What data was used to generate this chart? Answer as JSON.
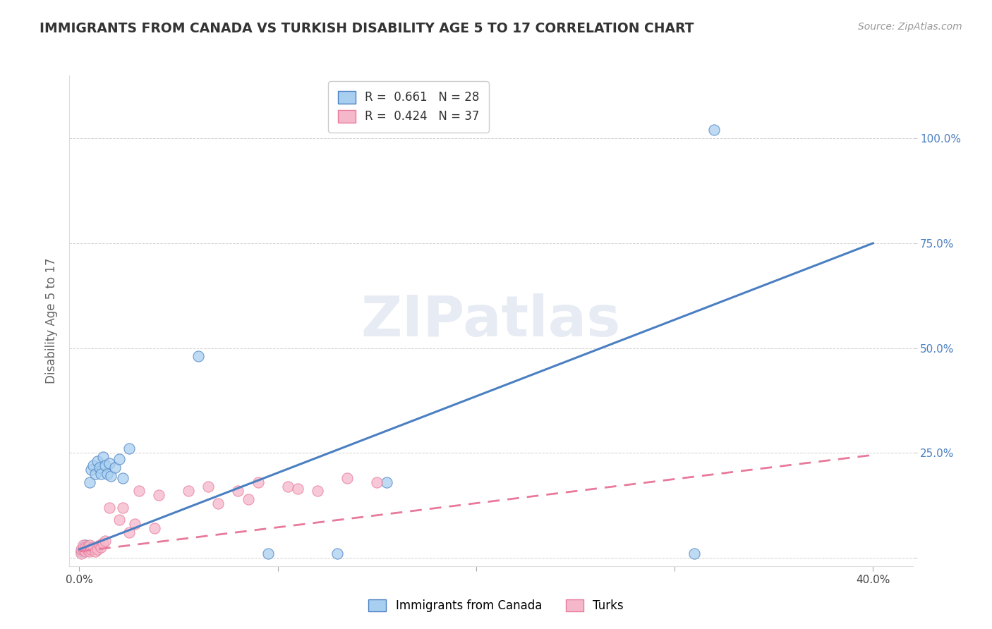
{
  "title": "IMMIGRANTS FROM CANADA VS TURKISH DISABILITY AGE 5 TO 17 CORRELATION CHART",
  "source": "Source: ZipAtlas.com",
  "xlabel": "",
  "ylabel": "Disability Age 5 to 17",
  "legend_label1": "Immigrants from Canada",
  "legend_label2": "Turks",
  "r1": 0.661,
  "n1": 28,
  "r2": 0.424,
  "n2": 37,
  "xlim": [
    -0.005,
    0.42
  ],
  "ylim": [
    -0.02,
    1.15
  ],
  "xticks": [
    0.0,
    0.1,
    0.2,
    0.3,
    0.4
  ],
  "xtick_labels": [
    "0.0%",
    "",
    "",
    "",
    "40.0%"
  ],
  "yticks": [
    0.0,
    0.25,
    0.5,
    0.75,
    1.0
  ],
  "ytick_labels_right": [
    "",
    "25.0%",
    "50.0%",
    "75.0%",
    "100.0%"
  ],
  "color_canada": "#a8cff0",
  "color_turks": "#f5b8cb",
  "color_canada_line": "#4a7fc1",
  "color_turks_line": "#e8799a",
  "background_color": "#ffffff",
  "watermark": "ZIPatlas",
  "canada_x": [
    0.001,
    0.002,
    0.002,
    0.003,
    0.003,
    0.004,
    0.005,
    0.006,
    0.007,
    0.008,
    0.009,
    0.01,
    0.011,
    0.012,
    0.013,
    0.014,
    0.015,
    0.016,
    0.018,
    0.02,
    0.022,
    0.025,
    0.06,
    0.095,
    0.13,
    0.155,
    0.31,
    0.32
  ],
  "canada_y": [
    0.015,
    0.02,
    0.025,
    0.025,
    0.03,
    0.02,
    0.18,
    0.21,
    0.22,
    0.2,
    0.23,
    0.215,
    0.2,
    0.24,
    0.22,
    0.2,
    0.225,
    0.195,
    0.215,
    0.235,
    0.19,
    0.26,
    0.48,
    0.01,
    0.01,
    0.18,
    0.01,
    1.02
  ],
  "turks_x": [
    0.001,
    0.001,
    0.002,
    0.002,
    0.003,
    0.003,
    0.004,
    0.004,
    0.005,
    0.005,
    0.006,
    0.007,
    0.008,
    0.009,
    0.01,
    0.011,
    0.012,
    0.013,
    0.015,
    0.02,
    0.022,
    0.025,
    0.028,
    0.03,
    0.038,
    0.04,
    0.055,
    0.065,
    0.07,
    0.08,
    0.085,
    0.09,
    0.105,
    0.11,
    0.12,
    0.135,
    0.15
  ],
  "turks_y": [
    0.01,
    0.02,
    0.02,
    0.03,
    0.015,
    0.025,
    0.02,
    0.025,
    0.03,
    0.015,
    0.02,
    0.025,
    0.015,
    0.02,
    0.03,
    0.025,
    0.035,
    0.04,
    0.12,
    0.09,
    0.12,
    0.06,
    0.08,
    0.16,
    0.07,
    0.15,
    0.16,
    0.17,
    0.13,
    0.16,
    0.14,
    0.18,
    0.17,
    0.165,
    0.16,
    0.19,
    0.18
  ],
  "canada_line_x": [
    0.0,
    0.4
  ],
  "canada_line_y": [
    0.02,
    0.75
  ],
  "turks_line_x": [
    0.0,
    0.4
  ],
  "turks_line_y": [
    0.015,
    0.245
  ]
}
